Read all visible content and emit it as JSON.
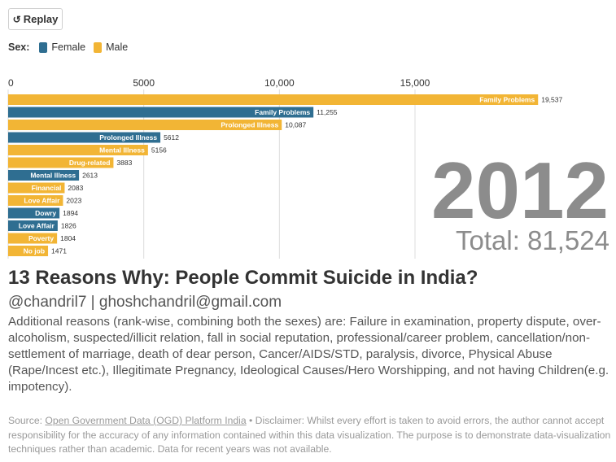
{
  "controls": {
    "replay_label": "Replay"
  },
  "legend": {
    "title": "Sex:",
    "items": [
      {
        "label": "Female",
        "color": "#2f6e91"
      },
      {
        "label": "Male",
        "color": "#f2b535"
      }
    ]
  },
  "chart_data": {
    "type": "bar",
    "orientation": "horizontal",
    "x_ticks": [
      "0",
      "5000",
      "10,000",
      "15,000"
    ],
    "x_tick_values": [
      0,
      5000,
      10000,
      15000
    ],
    "xlim": [
      0,
      19800
    ],
    "grid": true,
    "year": "2012",
    "total_text": "Total: 81,524",
    "bars": [
      {
        "label": "Family Problems",
        "sex": "Male",
        "value": 19537,
        "value_label": "19,537"
      },
      {
        "label": "Family Problems",
        "sex": "Female",
        "value": 11255,
        "value_label": "11,255"
      },
      {
        "label": "Prolonged Illness",
        "sex": "Male",
        "value": 10087,
        "value_label": "10,087"
      },
      {
        "label": "Prolonged Illness",
        "sex": "Female",
        "value": 5612,
        "value_label": "5612"
      },
      {
        "label": "Mental Illness",
        "sex": "Male",
        "value": 5156,
        "value_label": "5156"
      },
      {
        "label": "Drug-related",
        "sex": "Male",
        "value": 3883,
        "value_label": "3883"
      },
      {
        "label": "Mental Illness",
        "sex": "Female",
        "value": 2613,
        "value_label": "2613"
      },
      {
        "label": "Financial",
        "sex": "Male",
        "value": 2083,
        "value_label": "2083"
      },
      {
        "label": "Love Affair",
        "sex": "Male",
        "value": 2023,
        "value_label": "2023"
      },
      {
        "label": "Dowry",
        "sex": "Female",
        "value": 1894,
        "value_label": "1894"
      },
      {
        "label": "Love Affair",
        "sex": "Female",
        "value": 1826,
        "value_label": "1826"
      },
      {
        "label": "Poverty",
        "sex": "Male",
        "value": 1804,
        "value_label": "1804"
      },
      {
        "label": "No job",
        "sex": "Male",
        "value": 1471,
        "value_label": "1471"
      }
    ]
  },
  "text": {
    "title": "13 Reasons Why: People Commit Suicide in India?",
    "subtitle": "@chandril7 | ghoshchandril@gmail.com",
    "description": "Additional reasons (rank-wise, combining both the sexes) are: Failure in examination, property dispute, over-alcoholism, suspected/illicit relation, fall in social reputation, professional/career problem, cancellation/non-settlement of marriage, death of dear person, Cancer/AIDS/STD, paralysis, divorce, Physical Abuse (Rape/Incest etc.), Illegitimate Pregnancy, Ideological Causes/Hero Worshipping, and not having Children(e.g. impotency).",
    "source_label": "Source:",
    "source_link": "Open Government Data (OGD) Platform India",
    "disclaimer": "• Disclaimer: Whilst every effort is taken to avoid errors, the author cannot accept responsibility for the accuracy of any information contained within this data visualization. The purpose is to demonstrate data-visualization techniques rather than academic. Data for recent years was not available."
  }
}
